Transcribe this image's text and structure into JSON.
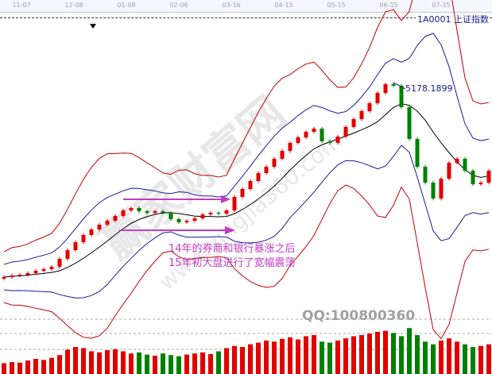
{
  "title": "1A0001 上证指数",
  "chart_data": {
    "type": "candlestick",
    "x_ticks": [
      "11-07",
      "12-08",
      "01-08",
      "02-06",
      "03-16",
      "04-15",
      "05-15",
      "06-15",
      "07-15"
    ],
    "closes": [
      2411,
      2434,
      2445,
      2468,
      2501,
      2524,
      2558,
      2670,
      2794,
      2906,
      3008,
      3086,
      3154,
      3210,
      3278,
      3356,
      3390,
      3345,
      3323,
      3345,
      3323,
      3233,
      3188,
      3210,
      3244,
      3300,
      3323,
      3311,
      3356,
      3548,
      3660,
      3773,
      3885,
      3975,
      4088,
      4200,
      4313,
      4391,
      4470,
      4515,
      4335,
      4313,
      4403,
      4538,
      4650,
      4763,
      4875,
      5021,
      5145,
      5123,
      4819,
      4369,
      3975,
      3750,
      3525,
      3806,
      4031,
      4088,
      3919,
      3728,
      3750,
      3919
    ],
    "volume": [
      20,
      22,
      21,
      25,
      28,
      26,
      30,
      35,
      45,
      50,
      48,
      42,
      40,
      44,
      46,
      42,
      38,
      40,
      36,
      34,
      38,
      35,
      33,
      36,
      38,
      40,
      37,
      42,
      48,
      52,
      50,
      55,
      58,
      62,
      60,
      65,
      68,
      64,
      70,
      72,
      60,
      58,
      62,
      66,
      70,
      72,
      75,
      78,
      80,
      76,
      70,
      85,
      72,
      60,
      55,
      62,
      66,
      60,
      55,
      50,
      52,
      55
    ],
    "colors": {
      "up": "#e00000",
      "down": "#008000",
      "mid": "#000000",
      "inner_band": "#1a1a9c",
      "outer_band": "#c00000",
      "annotation": "#c03cc0"
    },
    "annotations": {
      "peak_label": "5178.1899",
      "note_line1": "14年的券商和银行暴涨之后",
      "note_line2": "15年初大盘进行了宽幅震荡"
    },
    "watermark": {
      "text": "赢家财富网",
      "url": "www.yingjia360.com",
      "qq": "QQ:100800360"
    }
  }
}
